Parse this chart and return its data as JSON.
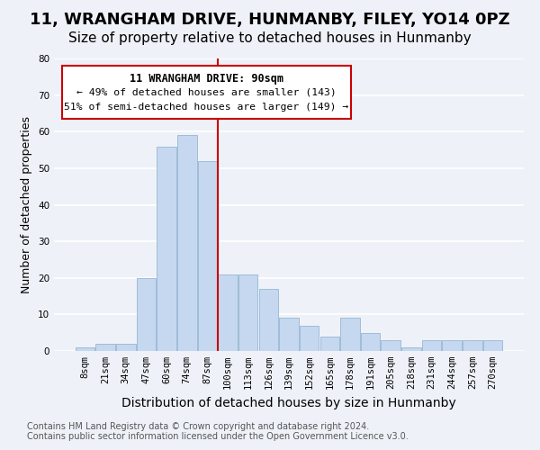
{
  "title": "11, WRANGHAM DRIVE, HUNMANBY, FILEY, YO14 0PZ",
  "subtitle": "Size of property relative to detached houses in Hunmanby",
  "xlabel": "Distribution of detached houses by size in Hunmanby",
  "ylabel": "Number of detached properties",
  "bar_labels": [
    "8sqm",
    "21sqm",
    "34sqm",
    "47sqm",
    "60sqm",
    "74sqm",
    "87sqm",
    "100sqm",
    "113sqm",
    "126sqm",
    "139sqm",
    "152sqm",
    "165sqm",
    "178sqm",
    "191sqm",
    "205sqm",
    "218sqm",
    "231sqm",
    "244sqm",
    "257sqm",
    "270sqm"
  ],
  "bar_values": [
    1,
    2,
    2,
    20,
    56,
    59,
    52,
    21,
    21,
    17,
    9,
    7,
    4,
    9,
    5,
    3,
    1,
    3,
    3,
    3,
    3
  ],
  "bar_color": "#c5d8f0",
  "bar_edge_color": "#a0bcd8",
  "marker_bar_index": 6,
  "marker_line_color": "#cc0000",
  "ylim": [
    0,
    80
  ],
  "yticks": [
    0,
    10,
    20,
    30,
    40,
    50,
    60,
    70,
    80
  ],
  "annotation_title": "11 WRANGHAM DRIVE: 90sqm",
  "annotation_line1": "← 49% of detached houses are smaller (143)",
  "annotation_line2": "51% of semi-detached houses are larger (149) →",
  "annotation_box_color": "#ffffff",
  "annotation_box_edge": "#cc0000",
  "footer_line1": "Contains HM Land Registry data © Crown copyright and database right 2024.",
  "footer_line2": "Contains public sector information licensed under the Open Government Licence v3.0.",
  "background_color": "#eef2f8",
  "grid_color": "#ffffff",
  "title_fontsize": 13,
  "subtitle_fontsize": 11,
  "xlabel_fontsize": 10,
  "ylabel_fontsize": 9,
  "tick_fontsize": 7.5,
  "footer_fontsize": 7
}
